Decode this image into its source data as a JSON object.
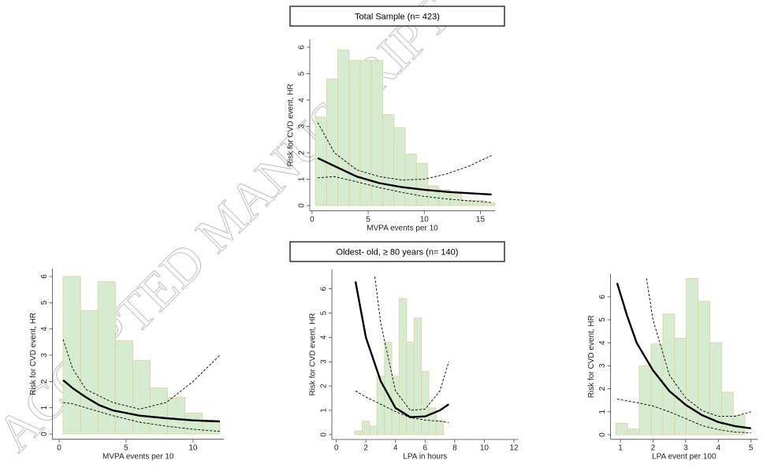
{
  "watermark": "ACCEPTED MANUSCRIPT",
  "chart_data": [
    {
      "type": "histogram-spline",
      "title": "Total Sample (n= 423)",
      "xlabel": "MVPA events per 10",
      "ylabel": "Risk for CVD event, HR",
      "xlim": [
        -0.2,
        16.3
      ],
      "ylim": [
        -0.2,
        6.3
      ],
      "xticks": [
        0,
        5,
        10,
        15
      ],
      "yticks": [
        0,
        1,
        2,
        3,
        4,
        5,
        6
      ],
      "histogram": {
        "color": "#d5ecd1",
        "edge_color": "#e3d6a6",
        "bins": [
          0.3,
          1.3,
          2.3,
          3.3,
          4.3,
          5.3,
          6.3,
          7.3,
          8.3,
          9.3,
          10.3,
          11.3,
          12.3,
          13.3,
          14.3,
          15.3,
          16.3
        ],
        "counts": [
          3.35,
          4.8,
          5.9,
          5.5,
          5.5,
          5.5,
          3.45,
          2.95,
          1.95,
          1.6,
          0.75,
          0.6,
          0.45,
          0.2,
          0.2,
          0.1
        ]
      },
      "lines": [
        {
          "style": "solid",
          "color": "#000000",
          "x": [
            0.5,
            2,
            4,
            6,
            8,
            10,
            12,
            14,
            16
          ],
          "values": [
            1.8,
            1.5,
            1.1,
            0.85,
            0.7,
            0.6,
            0.52,
            0.47,
            0.42
          ]
        },
        {
          "style": "dashed",
          "color": "#000000",
          "x": [
            0.5,
            2,
            4,
            6,
            8,
            10,
            12,
            14,
            16
          ],
          "values": [
            3.15,
            2.0,
            1.35,
            1.1,
            0.97,
            1.0,
            1.2,
            1.5,
            1.9
          ]
        },
        {
          "style": "dashed",
          "color": "#000000",
          "x": [
            0.5,
            2,
            4,
            6,
            8,
            10,
            12,
            14,
            16
          ],
          "values": [
            1.05,
            1.1,
            0.9,
            0.68,
            0.5,
            0.35,
            0.25,
            0.18,
            0.12
          ]
        }
      ]
    },
    {
      "type": "histogram-spline",
      "xlabel": "MVPA events per 10",
      "ylabel": "Risk for CVD event, HR",
      "xlim": [
        -0.5,
        12.3
      ],
      "ylim": [
        -0.2,
        6.3
      ],
      "xticks": [
        0,
        5,
        10
      ],
      "yticks": [
        0,
        1,
        2,
        3,
        4,
        5,
        6
      ],
      "histogram": {
        "color": "#d5ecd1",
        "edge_color": "#e3d6a6",
        "bins": [
          0.3,
          1.6,
          2.9,
          4.2,
          5.5,
          6.8,
          8.1,
          9.4,
          10.7,
          12.0
        ],
        "counts": [
          6,
          4.7,
          5.8,
          3.55,
          2.8,
          1.75,
          1.4,
          0.8,
          0.45
        ]
      },
      "lines": [
        {
          "style": "solid",
          "color": "#000000",
          "x": [
            0.3,
            1,
            2,
            3,
            4,
            6,
            8,
            10,
            12
          ],
          "values": [
            2.05,
            1.75,
            1.4,
            1.1,
            0.9,
            0.7,
            0.6,
            0.52,
            0.48
          ]
        },
        {
          "style": "dashed",
          "color": "#000000",
          "x": [
            0.3,
            1,
            2,
            4,
            6,
            8,
            10,
            12
          ],
          "values": [
            3.6,
            2.5,
            1.7,
            1.2,
            0.95,
            1.2,
            2.0,
            3.0
          ]
        },
        {
          "style": "dashed",
          "color": "#000000",
          "x": [
            0.3,
            1,
            2,
            4,
            6,
            8,
            10,
            12
          ],
          "values": [
            1.2,
            1.15,
            1.0,
            0.7,
            0.45,
            0.3,
            0.18,
            0.1
          ]
        }
      ]
    },
    {
      "type": "histogram-spline",
      "title": "Oldest- old, ≥ 80 years (n= 140)",
      "xlabel": "LPA in hours",
      "ylabel": "Risk for CVD event, HR",
      "xlim": [
        -0.3,
        12.3
      ],
      "ylim": [
        -0.2,
        6.8
      ],
      "xticks": [
        0,
        2,
        4,
        6,
        8,
        10,
        12
      ],
      "yticks": [
        0,
        1,
        2,
        3,
        4,
        5,
        6
      ],
      "histogram": {
        "color": "#d5ecd1",
        "edge_color": "#e3d6a6",
        "bins": [
          1.25,
          1.75,
          2.25,
          2.75,
          3.25,
          3.75,
          4.25,
          4.75,
          5.25,
          5.75,
          6.25,
          6.75,
          7.25
        ],
        "counts": [
          0.15,
          0.55,
          0.35,
          2.4,
          3.8,
          2.4,
          5.6,
          3.8,
          4.8,
          2.6,
          1.1,
          0.6
        ]
      },
      "lines": [
        {
          "style": "solid",
          "color": "#000000",
          "x": [
            1.3,
            2,
            3,
            4,
            5,
            6,
            7,
            7.6
          ],
          "values": [
            6.3,
            4.0,
            2.2,
            1.1,
            0.72,
            0.75,
            1.0,
            1.25
          ]
        },
        {
          "style": "dashed",
          "color": "#000000",
          "x": [
            2.6,
            3,
            4,
            5,
            6,
            7,
            7.6
          ],
          "values": [
            6.5,
            4.6,
            1.8,
            1.0,
            1.05,
            1.8,
            3.0
          ]
        },
        {
          "style": "dashed",
          "color": "#000000",
          "x": [
            1.3,
            2,
            3,
            4,
            5,
            6,
            7,
            7.6
          ],
          "values": [
            1.8,
            1.55,
            1.25,
            0.95,
            0.7,
            0.6,
            0.55,
            0.5
          ]
        }
      ]
    },
    {
      "type": "histogram-spline",
      "xlabel": "LPA event per 100",
      "ylabel": "Risk for CVD event, HR",
      "xlim": [
        0.7,
        5.2
      ],
      "ylim": [
        -0.2,
        7.0
      ],
      "xticks": [
        1,
        2,
        3,
        4,
        5
      ],
      "yticks": [
        0,
        1,
        2,
        3,
        4,
        5,
        6
      ],
      "histogram": {
        "color": "#d5ecd1",
        "edge_color": "#e3d6a6",
        "bins": [
          0.86,
          1.22,
          1.58,
          1.94,
          2.3,
          2.66,
          3.02,
          3.38,
          3.74,
          4.1,
          4.46,
          4.82
        ],
        "counts": [
          0.5,
          0.25,
          3.0,
          3.95,
          5.25,
          4.2,
          6.8,
          5.8,
          4.0,
          1.85,
          0.85
        ]
      },
      "lines": [
        {
          "style": "solid",
          "color": "#000000",
          "x": [
            0.9,
            1.2,
            1.5,
            2,
            2.5,
            3,
            3.5,
            4,
            4.5,
            5
          ],
          "values": [
            6.6,
            5.2,
            4.0,
            2.8,
            1.9,
            1.3,
            0.85,
            0.55,
            0.38,
            0.28
          ]
        },
        {
          "style": "dashed",
          "color": "#000000",
          "x": [
            1.8,
            2,
            2.5,
            3,
            3.5,
            4,
            4.5,
            5
          ],
          "values": [
            6.8,
            5.0,
            2.6,
            1.6,
            1.05,
            0.8,
            0.8,
            1.0
          ]
        },
        {
          "style": "dashed",
          "color": "#000000",
          "x": [
            0.9,
            1.5,
            2,
            2.5,
            3,
            3.5,
            4,
            4.5,
            5
          ],
          "values": [
            1.55,
            1.4,
            1.25,
            1.0,
            0.7,
            0.4,
            0.22,
            0.12,
            0.08
          ]
        }
      ]
    }
  ]
}
